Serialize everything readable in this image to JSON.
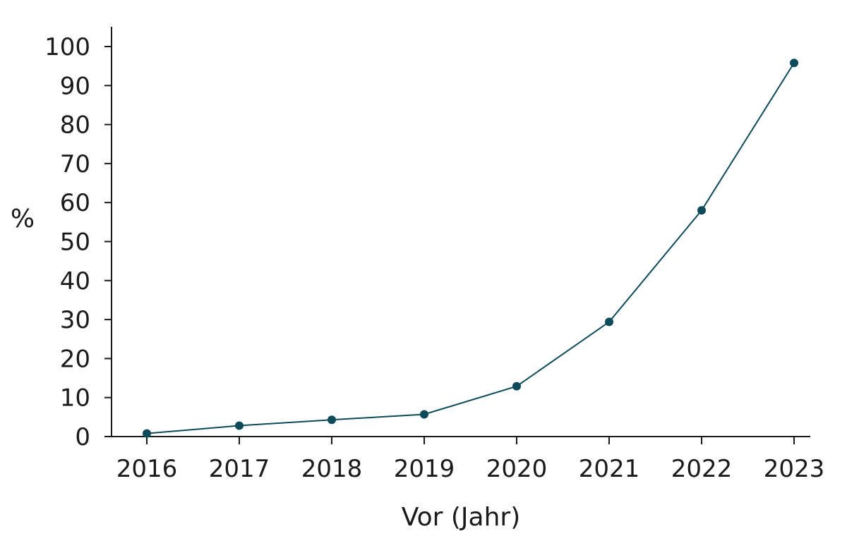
{
  "chart_data": {
    "type": "line",
    "title": "",
    "xlabel": "Vor (Jahr)",
    "ylabel": "%",
    "x": [
      2016,
      2017,
      2018,
      2019,
      2020,
      2021,
      2022,
      2023
    ],
    "ylim": [
      0,
      100
    ],
    "yticks": [
      0,
      10,
      20,
      30,
      40,
      50,
      60,
      70,
      80,
      90,
      100
    ],
    "grid": false,
    "legend": "none",
    "series": [
      {
        "color": "#0d4a5a",
        "values": [
          0.8,
          2.8,
          4.3,
          5.7,
          12.9,
          29.4,
          58.0,
          95.8
        ]
      }
    ]
  }
}
